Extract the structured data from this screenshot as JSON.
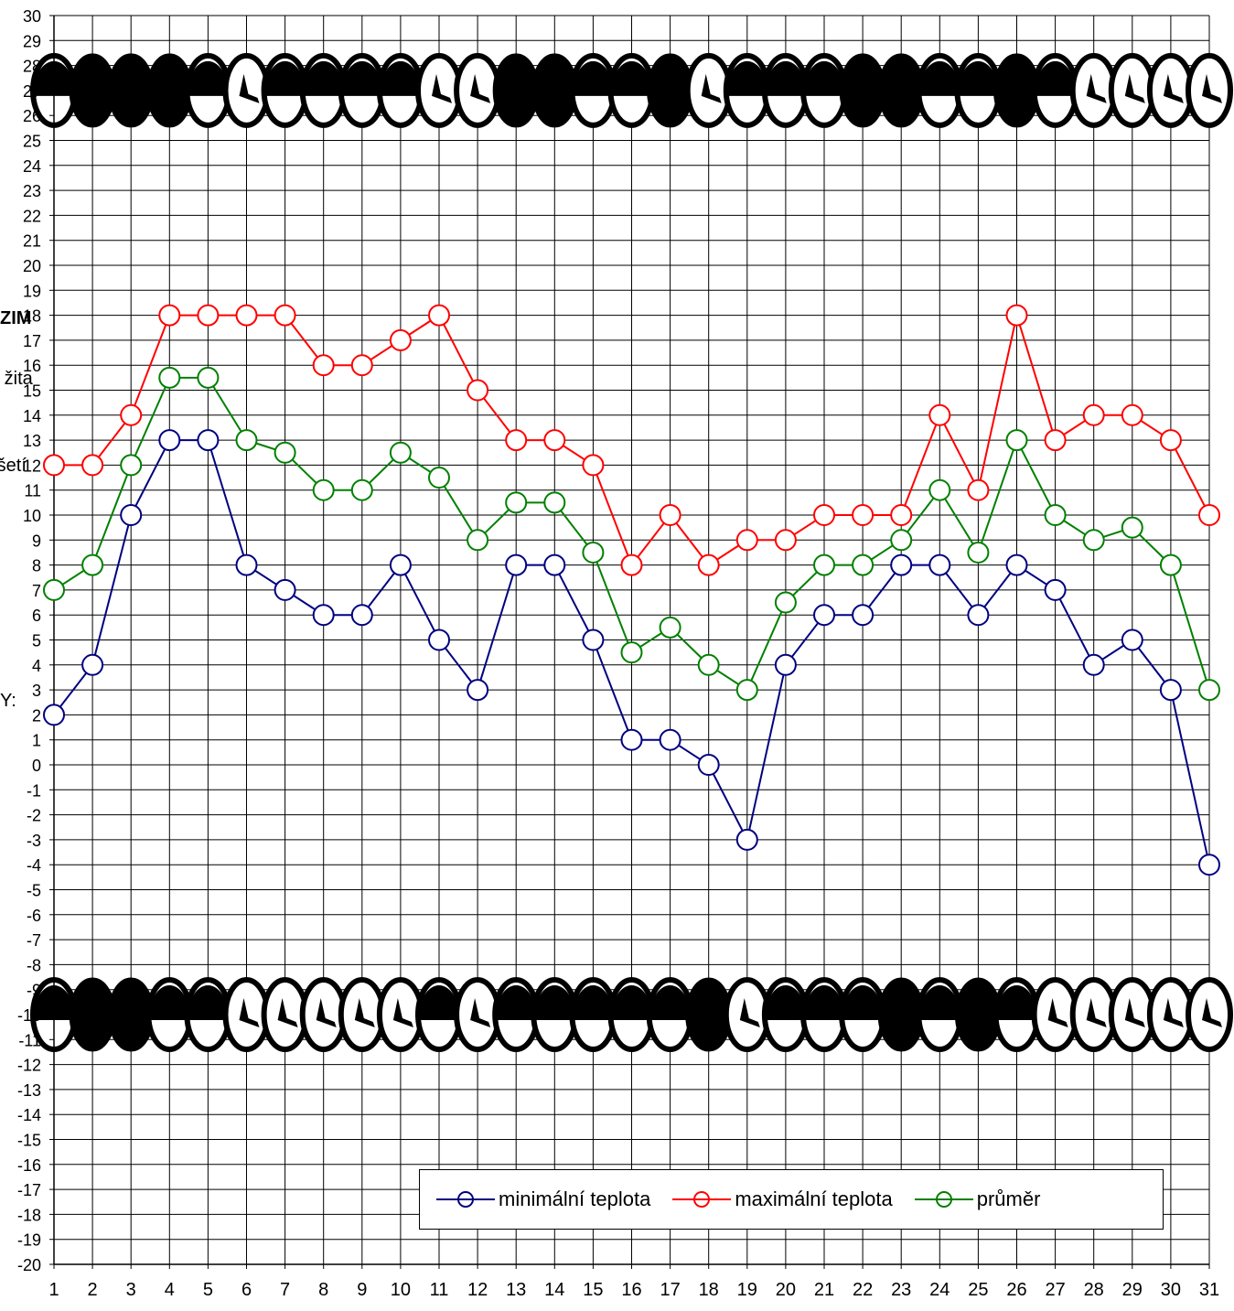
{
  "chart_data": {
    "type": "line",
    "x": [
      1,
      2,
      3,
      4,
      5,
      6,
      7,
      8,
      9,
      10,
      11,
      12,
      13,
      14,
      15,
      16,
      17,
      18,
      19,
      20,
      21,
      22,
      23,
      24,
      25,
      26,
      27,
      28,
      29,
      30,
      31
    ],
    "ylim": [
      -20,
      30
    ],
    "y_ticks_step": 1,
    "grid": true,
    "legend_position": "bottom-right",
    "series": [
      {
        "name": "minimální teplota",
        "color": "#000080",
        "values": [
          2,
          4,
          10,
          13,
          13,
          8,
          7,
          6,
          6,
          8,
          5,
          3,
          8,
          8,
          5,
          1,
          1,
          0,
          -3,
          4,
          6,
          6,
          8,
          8,
          6,
          8,
          7,
          4,
          5,
          3,
          -4
        ]
      },
      {
        "name": "maximální teplota",
        "color": "#ff0000",
        "values": [
          12,
          12,
          14,
          18,
          18,
          18,
          18,
          16,
          16,
          17,
          18,
          15,
          13,
          13,
          12,
          8,
          10,
          8,
          9,
          9,
          10,
          10,
          10,
          14,
          11,
          18,
          13,
          14,
          14,
          13,
          10
        ]
      },
      {
        "name": "průměr",
        "color": "#008000",
        "values": [
          7,
          8,
          12,
          15.5,
          15.5,
          13,
          12.5,
          11,
          11,
          12.5,
          11.5,
          9,
          10.5,
          10.5,
          8.5,
          4.5,
          5.5,
          4,
          3,
          6.5,
          8,
          8,
          9,
          11,
          8.5,
          13,
          10,
          9,
          9.5,
          8,
          3
        ]
      }
    ],
    "moon_rows": [
      {
        "name": "top",
        "center_y": 27,
        "phases": [
          "quarter",
          "full",
          "full",
          "full",
          "quarter",
          "crescent",
          "quarter",
          "quarter",
          "quarter",
          "quarter",
          "crescent",
          "crescent",
          "full",
          "full",
          "quarter",
          "quarter",
          "full",
          "crescent",
          "quarter",
          "quarter",
          "quarter",
          "full",
          "full",
          "quarter",
          "quarter",
          "full",
          "quarter",
          "crescent",
          "crescent",
          "crescent",
          "crescent"
        ]
      },
      {
        "name": "bottom",
        "center_y": -10,
        "phases": [
          "quarter",
          "full",
          "full",
          "quarter",
          "quarter",
          "crescent",
          "crescent",
          "crescent",
          "crescent",
          "crescent",
          "quarter",
          "crescent",
          "quarter",
          "quarter",
          "quarter",
          "quarter",
          "quarter",
          "full",
          "crescent",
          "quarter",
          "quarter",
          "quarter",
          "full",
          "quarter",
          "full",
          "quarter",
          "crescent",
          "crescent",
          "crescent",
          "crescent",
          "crescent"
        ]
      }
    ]
  },
  "side_labels": {
    "zim": "ZIM",
    "zita": "o žita",
    "rseti": "ršetí",
    "y": "Y:"
  }
}
